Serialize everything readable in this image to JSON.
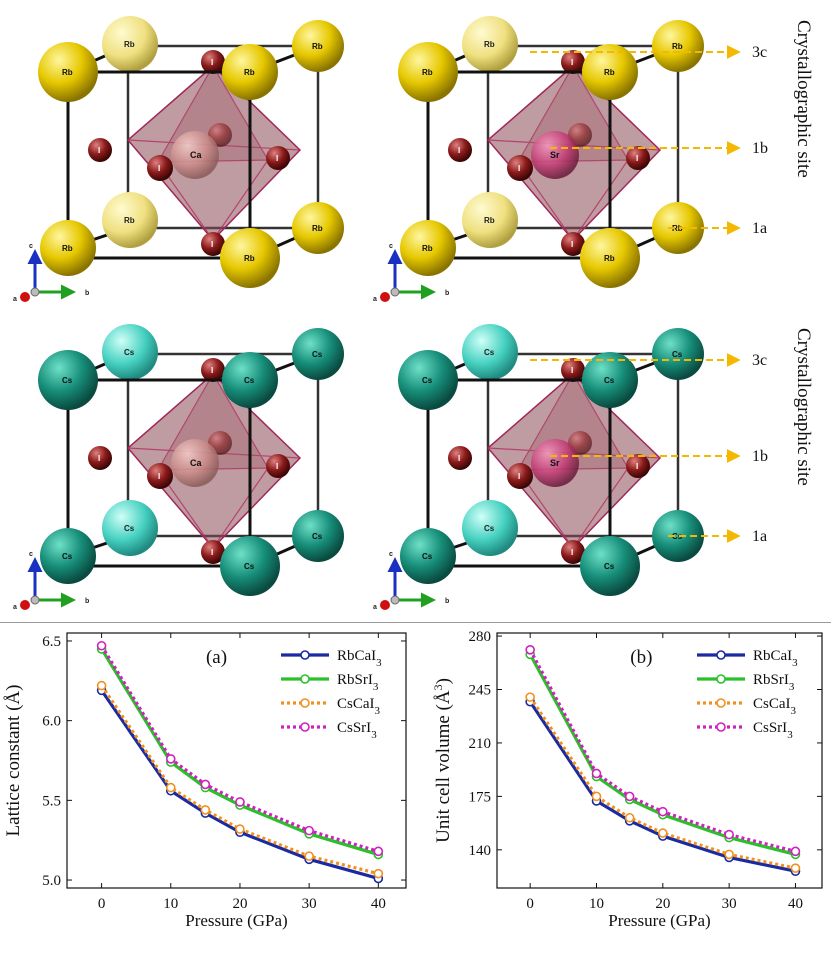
{
  "crystal": {
    "panels": [
      {
        "a_site": "Rb",
        "b_site": "Ca",
        "x_site": "I",
        "annotated": false
      },
      {
        "a_site": "Rb",
        "b_site": "Sr",
        "x_site": "I",
        "annotated": true
      },
      {
        "a_site": "Cs",
        "b_site": "Ca",
        "x_site": "I",
        "annotated": false
      },
      {
        "a_site": "Cs",
        "b_site": "Sr",
        "x_site": "I",
        "annotated": true
      }
    ],
    "site_labels": [
      "3c",
      "1b",
      "1a"
    ],
    "side_label": "Crystallographic site",
    "axis_labels": {
      "a": "a",
      "b": "b",
      "c": "c"
    },
    "colors": {
      "Rb": "#e6c800",
      "Cs": "#178f7a",
      "Cs_back": "#45d0c0",
      "Rb_back": "#f0e070",
      "Ca": "#c98a88",
      "Sr": "#c23a74",
      "I": "#8a1a1a",
      "octahedron": "#8a4a55",
      "arrow": "#f5b800"
    }
  },
  "chart_data": [
    {
      "type": "line",
      "panel_label": "(a)",
      "xlabel": "Pressure (GPa)",
      "ylabel": "Lattice constant (Å)",
      "xlim": [
        -5,
        44
      ],
      "ylim": [
        4.95,
        6.55
      ],
      "xticks": [
        0,
        10,
        20,
        30,
        40
      ],
      "yticks": [
        5.0,
        5.5,
        6.0,
        6.5
      ],
      "ytick_labels": [
        "5.0",
        "5.5",
        "6.0",
        "6.5"
      ],
      "x": [
        0,
        10,
        15,
        20,
        30,
        40
      ],
      "legend_position": "top-right",
      "series": [
        {
          "name": "RbCaI",
          "sub": "3",
          "color": "#1a2aa0",
          "dash": "",
          "values": [
            6.19,
            5.56,
            5.42,
            5.3,
            5.13,
            5.01
          ]
        },
        {
          "name": "RbSrI",
          "sub": "3",
          "color": "#2ac02a",
          "dash": "",
          "values": [
            6.45,
            5.74,
            5.58,
            5.47,
            5.29,
            5.16
          ]
        },
        {
          "name": "CsCaI",
          "sub": "3",
          "color": "#f09020",
          "dash": "3,3",
          "values": [
            6.22,
            5.58,
            5.44,
            5.32,
            5.15,
            5.04
          ]
        },
        {
          "name": "CsSrI",
          "sub": "3",
          "color": "#d020c0",
          "dash": "3,3",
          "values": [
            6.47,
            5.76,
            5.6,
            5.49,
            5.31,
            5.18
          ]
        }
      ]
    },
    {
      "type": "line",
      "panel_label": "(b)",
      "xlabel": "Pressure (GPa)",
      "ylabel": "Unit cell volume (Å",
      "ylabel_sup": "3",
      "ylabel_end": ")",
      "xlim": [
        -5,
        44
      ],
      "ylim": [
        115,
        282
      ],
      "xticks": [
        0,
        10,
        20,
        30,
        40
      ],
      "yticks": [
        140,
        175,
        210,
        245,
        280
      ],
      "ytick_labels": [
        "140",
        "175",
        "210",
        "245",
        "280"
      ],
      "x": [
        0,
        10,
        15,
        20,
        30,
        40
      ],
      "legend_position": "top-right",
      "series": [
        {
          "name": "RbCaI",
          "sub": "3",
          "color": "#1a2aa0",
          "dash": "",
          "values": [
            237,
            172,
            159,
            149,
            135,
            126
          ]
        },
        {
          "name": "RbSrI",
          "sub": "3",
          "color": "#2ac02a",
          "dash": "",
          "values": [
            268,
            188,
            173,
            163,
            148,
            137
          ]
        },
        {
          "name": "CsCaI",
          "sub": "3",
          "color": "#f09020",
          "dash": "3,3",
          "values": [
            240,
            175,
            161,
            151,
            137,
            128
          ]
        },
        {
          "name": "CsSrI",
          "sub": "3",
          "color": "#d020c0",
          "dash": "3,3",
          "values": [
            271,
            190,
            175,
            165,
            150,
            139
          ]
        }
      ]
    }
  ]
}
